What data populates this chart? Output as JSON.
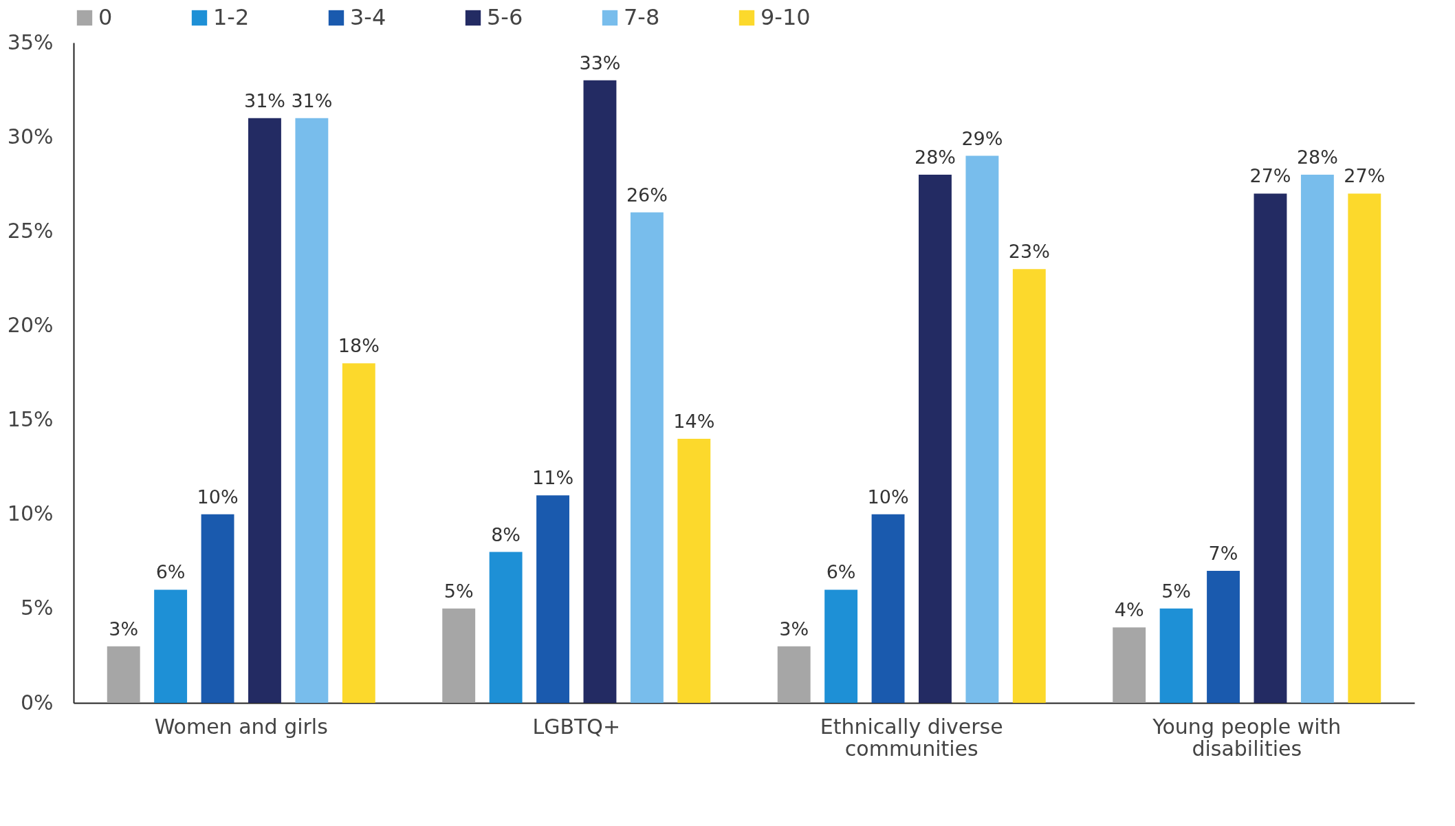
{
  "chart_data": {
    "type": "bar",
    "categories": [
      "Women and girls",
      "LGBTQ+",
      "Ethnically diverse communities",
      "Young people with disabilities"
    ],
    "series": [
      {
        "name": "0",
        "color": "#a6a6a6",
        "values": [
          3,
          5,
          3,
          4
        ],
        "value_labels": [
          "3%",
          "5%",
          "3%",
          "4%"
        ]
      },
      {
        "name": "1-2",
        "color": "#1e90d6",
        "values": [
          6,
          8,
          6,
          5
        ],
        "value_labels": [
          "6%",
          "8%",
          "6%",
          "5%"
        ]
      },
      {
        "name": "3-4",
        "color": "#1a5aae",
        "values": [
          10,
          11,
          10,
          7
        ],
        "value_labels": [
          "10%",
          "11%",
          "10%",
          "7%"
        ]
      },
      {
        "name": "5-6",
        "color": "#232b63",
        "values": [
          31,
          33,
          28,
          27
        ],
        "value_labels": [
          "31%",
          "33%",
          "28%",
          "27%"
        ]
      },
      {
        "name": "7-8",
        "color": "#78bdec",
        "values": [
          31,
          26,
          29,
          28
        ],
        "value_labels": [
          "31%",
          "26%",
          "29%",
          "28%"
        ]
      },
      {
        "name": "9-10",
        "color": "#fcd92c",
        "values": [
          18,
          14,
          23,
          27
        ],
        "value_labels": [
          "18%",
          "14%",
          "23%",
          "27%"
        ]
      }
    ],
    "ylim": [
      0,
      35
    ],
    "yticks": [
      {
        "value": 0,
        "label": "0%"
      },
      {
        "value": 5,
        "label": "5%"
      },
      {
        "value": 10,
        "label": "10%"
      },
      {
        "value": 15,
        "label": "15%"
      },
      {
        "value": 20,
        "label": "20%"
      },
      {
        "value": 25,
        "label": "25%"
      },
      {
        "value": 30,
        "label": "30%"
      },
      {
        "value": 35,
        "label": "35%"
      }
    ],
    "grid": false,
    "legend": "top"
  }
}
